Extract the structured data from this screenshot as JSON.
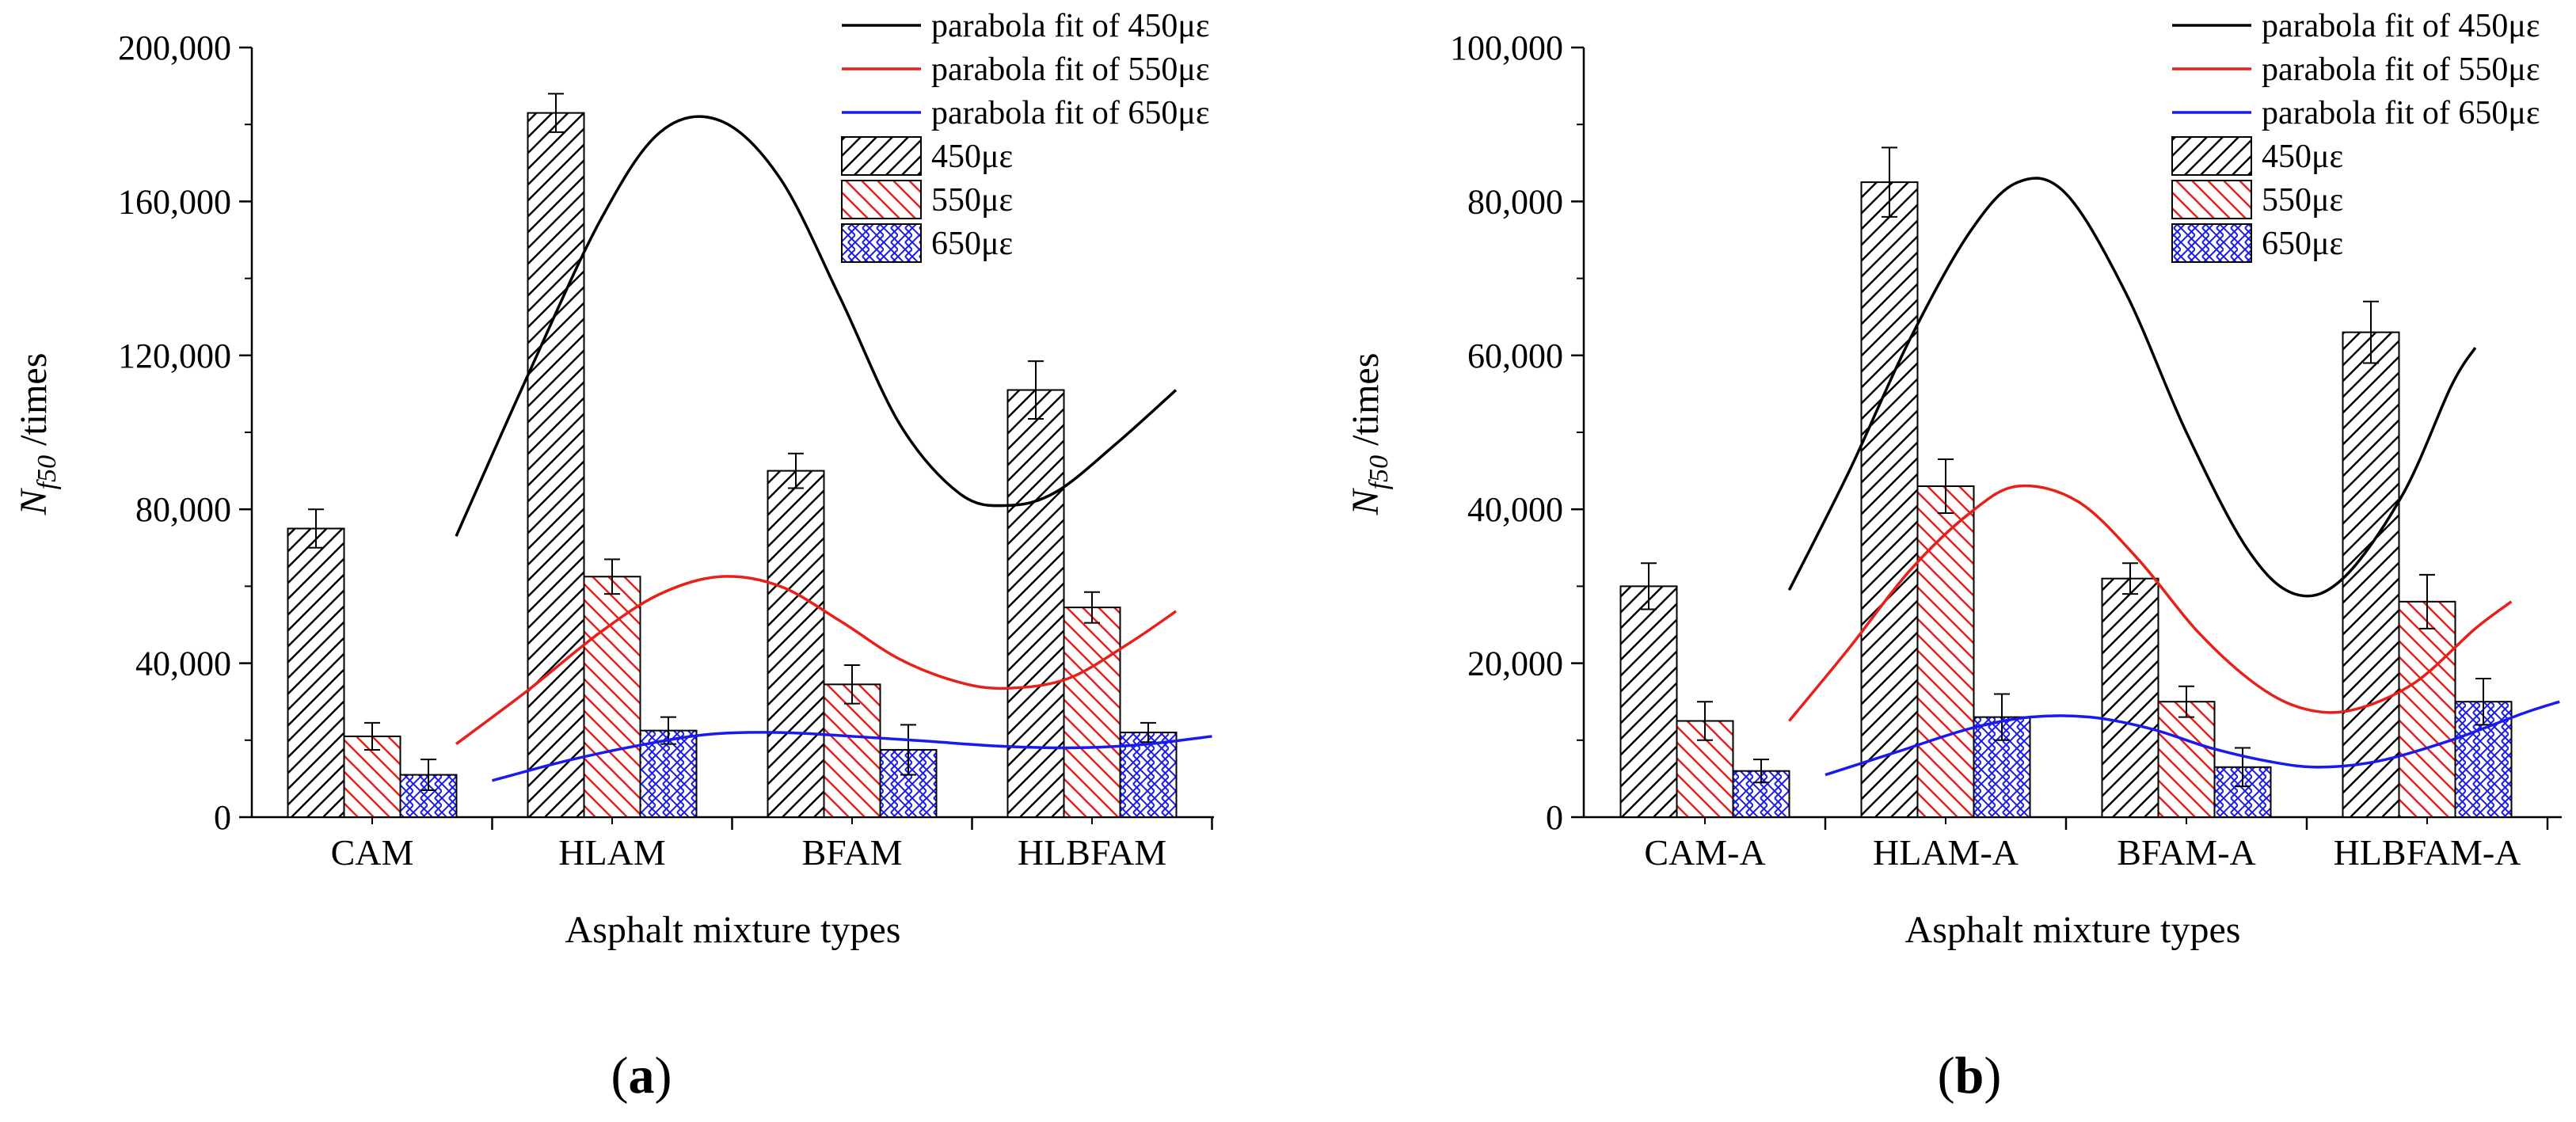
{
  "colors": {
    "s450": "#000000",
    "s550": "#e8201a",
    "s650": "#1a1aee",
    "axis": "#000000"
  },
  "chart_data": [
    {
      "type": "bar",
      "panel_label": "a",
      "title": "",
      "xlabel": "Asphalt mixture types",
      "ylabel_main": "N",
      "ylabel_sub": "f50",
      "ylabel_suffix": " /times",
      "ylim": [
        0,
        200000
      ],
      "y_ticks": [
        0,
        40000,
        80000,
        120000,
        160000,
        200000
      ],
      "y_tick_labels": [
        "0",
        "40,000",
        "80,000",
        "120,000",
        "160,000",
        "200,000"
      ],
      "categories": [
        "CAM",
        "HLAM",
        "BFAM",
        "HLBFAM"
      ],
      "grid": false,
      "legend_position": "top-right",
      "series": [
        {
          "name": "450με",
          "values": [
            75000,
            183000,
            90000,
            111000
          ],
          "errors": [
            5000,
            5000,
            4500,
            7500
          ]
        },
        {
          "name": "550με",
          "values": [
            21000,
            62500,
            34500,
            54500
          ],
          "errors": [
            3500,
            4500,
            5000,
            4000
          ]
        },
        {
          "name": "650με",
          "values": [
            11000,
            22500,
            17500,
            22000
          ],
          "errors": [
            4000,
            3500,
            6500,
            2500
          ]
        }
      ],
      "fits": [
        {
          "name": "parabola fit of 450με",
          "points": [
            [
              0.35,
              73000
            ],
            [
              0.65,
              115000
            ],
            [
              0.95,
              155000
            ],
            [
              1.2,
              178000
            ],
            [
              1.45,
              181000
            ],
            [
              1.7,
              166000
            ],
            [
              1.95,
              135000
            ],
            [
              2.2,
              102000
            ],
            [
              2.45,
              84000
            ],
            [
              2.65,
              81000
            ],
            [
              2.85,
              84500
            ],
            [
              3.1,
              97000
            ],
            [
              3.35,
              111000
            ]
          ]
        },
        {
          "name": "parabola fit of 550με",
          "points": [
            [
              0.35,
              19000
            ],
            [
              0.65,
              33000
            ],
            [
              0.95,
              48000
            ],
            [
              1.2,
              58000
            ],
            [
              1.45,
              62500
            ],
            [
              1.7,
              60000
            ],
            [
              1.95,
              51000
            ],
            [
              2.2,
              41000
            ],
            [
              2.45,
              35000
            ],
            [
              2.65,
              33500
            ],
            [
              2.9,
              36000
            ],
            [
              3.15,
              45000
            ],
            [
              3.35,
              53500
            ]
          ]
        },
        {
          "name": "parabola fit of 650με",
          "points": [
            [
              0.5,
              9500
            ],
            [
              0.8,
              14500
            ],
            [
              1.1,
              18500
            ],
            [
              1.4,
              21500
            ],
            [
              1.7,
              22000
            ],
            [
              2.0,
              21000
            ],
            [
              2.3,
              19800
            ],
            [
              2.6,
              18500
            ],
            [
              2.9,
              18000
            ],
            [
              3.2,
              18800
            ],
            [
              3.5,
              21000
            ]
          ]
        }
      ]
    },
    {
      "type": "bar",
      "panel_label": "b",
      "title": "",
      "xlabel": "Asphalt mixture types",
      "ylabel_main": "N",
      "ylabel_sub": "f50",
      "ylabel_suffix": " /times",
      "ylim": [
        0,
        100000
      ],
      "y_ticks": [
        0,
        20000,
        40000,
        60000,
        80000,
        100000
      ],
      "y_tick_labels": [
        "0",
        "20,000",
        "40,000",
        "60,000",
        "80,000",
        "100,000"
      ],
      "categories": [
        "CAM-A",
        "HLAM-A",
        "BFAM-A",
        "HLBFAM-A"
      ],
      "grid": false,
      "legend_position": "top-right",
      "series": [
        {
          "name": "450με",
          "values": [
            30000,
            82500,
            31000,
            63000
          ],
          "errors": [
            3000,
            4500,
            2000,
            4000
          ]
        },
        {
          "name": "550με",
          "values": [
            12500,
            43000,
            15000,
            28000
          ],
          "errors": [
            2500,
            3500,
            2000,
            3500
          ]
        },
        {
          "name": "650με",
          "values": [
            6000,
            13000,
            6500,
            15000
          ],
          "errors": [
            1500,
            3000,
            2500,
            3000
          ]
        }
      ],
      "fits": [
        {
          "name": "parabola fit of 450με",
          "points": [
            [
              0.35,
              29500
            ],
            [
              0.6,
              45000
            ],
            [
              0.85,
              62000
            ],
            [
              1.1,
              76000
            ],
            [
              1.3,
              82500
            ],
            [
              1.5,
              81000
            ],
            [
              1.75,
              68000
            ],
            [
              2.0,
              50000
            ],
            [
              2.25,
              35000
            ],
            [
              2.45,
              29000
            ],
            [
              2.65,
              31000
            ],
            [
              2.9,
              42000
            ],
            [
              3.1,
              56000
            ],
            [
              3.2,
              61000
            ]
          ]
        },
        {
          "name": "parabola fit of 550με",
          "points": [
            [
              0.35,
              12500
            ],
            [
              0.6,
              22000
            ],
            [
              0.85,
              32000
            ],
            [
              1.1,
              39500
            ],
            [
              1.3,
              43000
            ],
            [
              1.55,
              41000
            ],
            [
              1.8,
              33500
            ],
            [
              2.05,
              24000
            ],
            [
              2.3,
              17000
            ],
            [
              2.5,
              14000
            ],
            [
              2.7,
              14000
            ],
            [
              2.95,
              17500
            ],
            [
              3.2,
              24500
            ],
            [
              3.35,
              28000
            ]
          ]
        },
        {
          "name": "parabola fit of 650με",
          "points": [
            [
              0.5,
              5500
            ],
            [
              0.8,
              8500
            ],
            [
              1.1,
              11500
            ],
            [
              1.35,
              13000
            ],
            [
              1.6,
              13000
            ],
            [
              1.85,
              11500
            ],
            [
              2.1,
              9000
            ],
            [
              2.35,
              7200
            ],
            [
              2.55,
              6500
            ],
            [
              2.8,
              7300
            ],
            [
              3.1,
              10000
            ],
            [
              3.4,
              13500
            ],
            [
              3.55,
              15000
            ]
          ]
        }
      ]
    }
  ]
}
